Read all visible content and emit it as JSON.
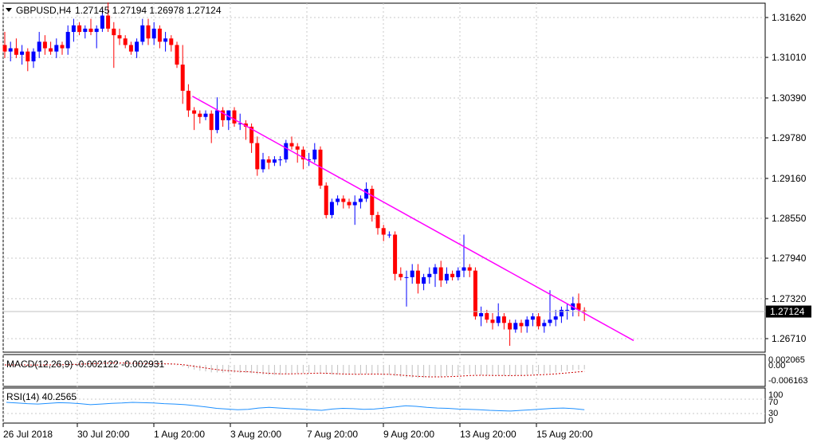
{
  "header": {
    "symbol_label": "GBPUSD,H4",
    "ohlc_text": "1.27145 1.27194 1.26978 1.27124"
  },
  "price_axis": {
    "ticks": [
      "1.31620",
      "1.31010",
      "1.30390",
      "1.29780",
      "1.29160",
      "1.28550",
      "1.27940",
      "1.27320",
      "1.26710"
    ],
    "current_price_label": "1.27124"
  },
  "time_axis": {
    "labels": [
      "26 Jul 2018",
      "30 Jul 20:00",
      "1 Aug 20:00",
      "3 Aug 20:00",
      "7 Aug 20:00",
      "9 Aug 20:00",
      "13 Aug 20:00",
      "15 Aug 20:00"
    ]
  },
  "macd_panel": {
    "label": "MACD(12,26,9) -0.002122 -0.002931",
    "ticks": [
      "0.002065",
      "0.00",
      "-0.006163"
    ]
  },
  "rsi_panel": {
    "label": "RSI(14) 40.2565",
    "ticks": [
      "100",
      "70",
      "30",
      "0"
    ]
  },
  "colors": {
    "bull": "#0000ff",
    "bear": "#ff0000",
    "trendline": "#ff00ff",
    "grid": "#c8c8c8",
    "macd_hist": "#c0c0c0",
    "macd_signal": "#cc0000",
    "rsi_line": "#1e90ff"
  },
  "chart_data": {
    "type": "candlestick",
    "symbol": "GBPUSD",
    "timeframe": "H4",
    "ylim": [
      1.264,
      1.319
    ],
    "candles": [
      {
        "o": 1.312,
        "h": 1.314,
        "l": 1.31,
        "c": 1.311
      },
      {
        "o": 1.311,
        "h": 1.3125,
        "l": 1.3095,
        "c": 1.3115
      },
      {
        "o": 1.3115,
        "h": 1.313,
        "l": 1.31,
        "c": 1.3105
      },
      {
        "o": 1.3105,
        "h": 1.312,
        "l": 1.309,
        "c": 1.311
      },
      {
        "o": 1.311,
        "h": 1.3115,
        "l": 1.308,
        "c": 1.3095
      },
      {
        "o": 1.3095,
        "h": 1.3115,
        "l": 1.3085,
        "c": 1.311
      },
      {
        "o": 1.311,
        "h": 1.314,
        "l": 1.31,
        "c": 1.3125
      },
      {
        "o": 1.3125,
        "h": 1.3135,
        "l": 1.3105,
        "c": 1.3115
      },
      {
        "o": 1.3115,
        "h": 1.3125,
        "l": 1.3105,
        "c": 1.311
      },
      {
        "o": 1.311,
        "h": 1.313,
        "l": 1.31,
        "c": 1.312
      },
      {
        "o": 1.312,
        "h": 1.3125,
        "l": 1.3105,
        "c": 1.3115
      },
      {
        "o": 1.3115,
        "h": 1.315,
        "l": 1.3105,
        "c": 1.314
      },
      {
        "o": 1.314,
        "h": 1.316,
        "l": 1.3125,
        "c": 1.315
      },
      {
        "o": 1.315,
        "h": 1.3155,
        "l": 1.3135,
        "c": 1.314
      },
      {
        "o": 1.314,
        "h": 1.315,
        "l": 1.313,
        "c": 1.3145
      },
      {
        "o": 1.3145,
        "h": 1.316,
        "l": 1.3135,
        "c": 1.314
      },
      {
        "o": 1.314,
        "h": 1.315,
        "l": 1.3115,
        "c": 1.3145
      },
      {
        "o": 1.3145,
        "h": 1.3175,
        "l": 1.314,
        "c": 1.3165
      },
      {
        "o": 1.3165,
        "h": 1.3185,
        "l": 1.314,
        "c": 1.3145
      },
      {
        "o": 1.3145,
        "h": 1.3155,
        "l": 1.3085,
        "c": 1.3135
      },
      {
        "o": 1.3135,
        "h": 1.3145,
        "l": 1.312,
        "c": 1.313
      },
      {
        "o": 1.313,
        "h": 1.3135,
        "l": 1.3115,
        "c": 1.312
      },
      {
        "o": 1.312,
        "h": 1.3125,
        "l": 1.3105,
        "c": 1.311
      },
      {
        "o": 1.311,
        "h": 1.313,
        "l": 1.31,
        "c": 1.3125
      },
      {
        "o": 1.3125,
        "h": 1.316,
        "l": 1.312,
        "c": 1.315
      },
      {
        "o": 1.315,
        "h": 1.316,
        "l": 1.312,
        "c": 1.313
      },
      {
        "o": 1.313,
        "h": 1.3155,
        "l": 1.312,
        "c": 1.3145
      },
      {
        "o": 1.3145,
        "h": 1.315,
        "l": 1.3115,
        "c": 1.3125
      },
      {
        "o": 1.3125,
        "h": 1.314,
        "l": 1.311,
        "c": 1.313
      },
      {
        "o": 1.313,
        "h": 1.3135,
        "l": 1.311,
        "c": 1.312
      },
      {
        "o": 1.312,
        "h": 1.3125,
        "l": 1.3085,
        "c": 1.309
      },
      {
        "o": 1.309,
        "h": 1.312,
        "l": 1.303,
        "c": 1.305
      },
      {
        "o": 1.305,
        "h": 1.306,
        "l": 1.301,
        "c": 1.302
      },
      {
        "o": 1.302,
        "h": 1.3025,
        "l": 1.299,
        "c": 1.3015
      },
      {
        "o": 1.3015,
        "h": 1.302,
        "l": 1.3,
        "c": 1.301
      },
      {
        "o": 1.301,
        "h": 1.302,
        "l": 1.3005,
        "c": 1.3015
      },
      {
        "o": 1.3015,
        "h": 1.302,
        "l": 1.297,
        "c": 1.299
      },
      {
        "o": 1.299,
        "h": 1.304,
        "l": 1.2985,
        "c": 1.302
      },
      {
        "o": 1.302,
        "h": 1.3025,
        "l": 1.2995,
        "c": 1.3005
      },
      {
        "o": 1.3005,
        "h": 1.302,
        "l": 1.299,
        "c": 1.302
      },
      {
        "o": 1.302,
        "h": 1.3025,
        "l": 1.2995,
        "c": 1.3
      },
      {
        "o": 1.3,
        "h": 1.3015,
        "l": 1.299,
        "c": 1.3
      },
      {
        "o": 1.3,
        "h": 1.3005,
        "l": 1.2975,
        "c": 1.2995
      },
      {
        "o": 1.2995,
        "h": 1.3,
        "l": 1.2955,
        "c": 1.297
      },
      {
        "o": 1.297,
        "h": 1.298,
        "l": 1.292,
        "c": 1.293
      },
      {
        "o": 1.293,
        "h": 1.2955,
        "l": 1.2925,
        "c": 1.2945
      },
      {
        "o": 1.2945,
        "h": 1.295,
        "l": 1.293,
        "c": 1.294
      },
      {
        "o": 1.294,
        "h": 1.295,
        "l": 1.2935,
        "c": 1.2945
      },
      {
        "o": 1.2945,
        "h": 1.295,
        "l": 1.2935,
        "c": 1.2945
      },
      {
        "o": 1.2945,
        "h": 1.2975,
        "l": 1.294,
        "c": 1.297
      },
      {
        "o": 1.297,
        "h": 1.298,
        "l": 1.296,
        "c": 1.2965
      },
      {
        "o": 1.2965,
        "h": 1.297,
        "l": 1.294,
        "c": 1.296
      },
      {
        "o": 1.296,
        "h": 1.2965,
        "l": 1.293,
        "c": 1.2945
      },
      {
        "o": 1.2945,
        "h": 1.2955,
        "l": 1.2935,
        "c": 1.2945
      },
      {
        "o": 1.2945,
        "h": 1.297,
        "l": 1.294,
        "c": 1.296
      },
      {
        "o": 1.296,
        "h": 1.2965,
        "l": 1.29,
        "c": 1.2905
      },
      {
        "o": 1.2905,
        "h": 1.291,
        "l": 1.2855,
        "c": 1.286
      },
      {
        "o": 1.286,
        "h": 1.2885,
        "l": 1.2855,
        "c": 1.288
      },
      {
        "o": 1.288,
        "h": 1.289,
        "l": 1.2875,
        "c": 1.2885
      },
      {
        "o": 1.2885,
        "h": 1.289,
        "l": 1.287,
        "c": 1.288
      },
      {
        "o": 1.288,
        "h": 1.2885,
        "l": 1.287,
        "c": 1.2875
      },
      {
        "o": 1.2875,
        "h": 1.289,
        "l": 1.2845,
        "c": 1.288
      },
      {
        "o": 1.288,
        "h": 1.289,
        "l": 1.287,
        "c": 1.2885
      },
      {
        "o": 1.2885,
        "h": 1.291,
        "l": 1.288,
        "c": 1.29
      },
      {
        "o": 1.29,
        "h": 1.2905,
        "l": 1.285,
        "c": 1.286
      },
      {
        "o": 1.286,
        "h": 1.2865,
        "l": 1.283,
        "c": 1.284
      },
      {
        "o": 1.284,
        "h": 1.2845,
        "l": 1.282,
        "c": 1.283
      },
      {
        "o": 1.283,
        "h": 1.2835,
        "l": 1.2825,
        "c": 1.283
      },
      {
        "o": 1.283,
        "h": 1.2835,
        "l": 1.276,
        "c": 1.277
      },
      {
        "o": 1.277,
        "h": 1.278,
        "l": 1.276,
        "c": 1.2765
      },
      {
        "o": 1.2765,
        "h": 1.2775,
        "l": 1.272,
        "c": 1.2765
      },
      {
        "o": 1.2765,
        "h": 1.2785,
        "l": 1.2755,
        "c": 1.2775
      },
      {
        "o": 1.2775,
        "h": 1.2785,
        "l": 1.274,
        "c": 1.2755
      },
      {
        "o": 1.2755,
        "h": 1.277,
        "l": 1.2745,
        "c": 1.2765
      },
      {
        "o": 1.2765,
        "h": 1.278,
        "l": 1.2755,
        "c": 1.277
      },
      {
        "o": 1.277,
        "h": 1.2785,
        "l": 1.275,
        "c": 1.278
      },
      {
        "o": 1.278,
        "h": 1.279,
        "l": 1.275,
        "c": 1.276
      },
      {
        "o": 1.276,
        "h": 1.278,
        "l": 1.2755,
        "c": 1.277
      },
      {
        "o": 1.277,
        "h": 1.2775,
        "l": 1.276,
        "c": 1.2765
      },
      {
        "o": 1.2765,
        "h": 1.278,
        "l": 1.276,
        "c": 1.2775
      },
      {
        "o": 1.2775,
        "h": 1.283,
        "l": 1.2765,
        "c": 1.278
      },
      {
        "o": 1.278,
        "h": 1.2785,
        "l": 1.2765,
        "c": 1.2775
      },
      {
        "o": 1.2775,
        "h": 1.278,
        "l": 1.27,
        "c": 1.2705
      },
      {
        "o": 1.2705,
        "h": 1.272,
        "l": 1.269,
        "c": 1.271
      },
      {
        "o": 1.271,
        "h": 1.2715,
        "l": 1.2695,
        "c": 1.27
      },
      {
        "o": 1.27,
        "h": 1.271,
        "l": 1.2685,
        "c": 1.2695
      },
      {
        "o": 1.2695,
        "h": 1.2725,
        "l": 1.269,
        "c": 1.2705
      },
      {
        "o": 1.2705,
        "h": 1.271,
        "l": 1.2685,
        "c": 1.2695
      },
      {
        "o": 1.2695,
        "h": 1.27,
        "l": 1.266,
        "c": 1.2685
      },
      {
        "o": 1.2685,
        "h": 1.27,
        "l": 1.268,
        "c": 1.2695
      },
      {
        "o": 1.2695,
        "h": 1.27,
        "l": 1.268,
        "c": 1.269
      },
      {
        "o": 1.269,
        "h": 1.2705,
        "l": 1.268,
        "c": 1.27
      },
      {
        "o": 1.27,
        "h": 1.271,
        "l": 1.269,
        "c": 1.2705
      },
      {
        "o": 1.2705,
        "h": 1.271,
        "l": 1.2685,
        "c": 1.269
      },
      {
        "o": 1.269,
        "h": 1.27,
        "l": 1.268,
        "c": 1.2695
      },
      {
        "o": 1.2695,
        "h": 1.2745,
        "l": 1.269,
        "c": 1.27
      },
      {
        "o": 1.27,
        "h": 1.2715,
        "l": 1.269,
        "c": 1.2705
      },
      {
        "o": 1.2705,
        "h": 1.272,
        "l": 1.2695,
        "c": 1.2715
      },
      {
        "o": 1.2715,
        "h": 1.2725,
        "l": 1.27,
        "c": 1.2715
      },
      {
        "o": 1.2715,
        "h": 1.2735,
        "l": 1.2705,
        "c": 1.2725
      },
      {
        "o": 1.2725,
        "h": 1.274,
        "l": 1.2705,
        "c": 1.2715
      },
      {
        "o": 1.2714,
        "h": 1.2719,
        "l": 1.2698,
        "c": 1.2712
      }
    ],
    "trendline": {
      "start": {
        "index": 32,
        "price": 1.3045
      },
      "end": {
        "index": 103,
        "price": 1.27
      }
    },
    "current_price": 1.27124,
    "macd": {
      "params": "12,26,9",
      "main": -0.002122,
      "signal": -0.002931
    },
    "rsi": {
      "period": 14,
      "value": 40.2565,
      "ylim": [
        0,
        100
      ],
      "values": [
        62,
        60,
        58,
        57,
        59,
        61,
        60,
        58,
        55,
        57,
        59,
        60,
        62,
        61,
        60,
        58,
        57,
        55,
        52,
        48,
        44,
        42,
        40,
        41,
        45,
        47,
        45,
        43,
        42,
        40,
        38,
        42,
        44,
        43,
        41,
        42,
        45,
        48,
        52,
        50,
        47,
        45,
        44,
        42,
        41,
        40,
        38,
        37,
        36,
        38,
        40,
        42,
        44,
        45,
        43,
        40
      ]
    }
  }
}
